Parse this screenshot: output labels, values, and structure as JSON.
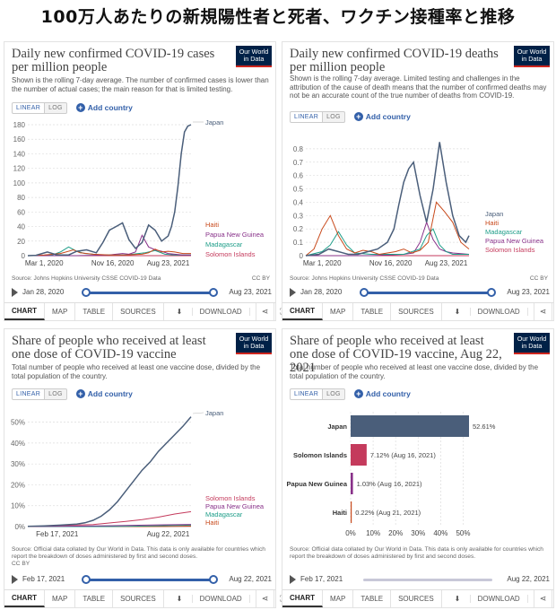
{
  "header": {
    "title": "100万人あたりの新規陽性者と死者、ワクチン接種率と推移"
  },
  "common": {
    "logo": "Our World in Data",
    "linear": "LINEAR",
    "log": "LOG",
    "add_country": "Add country",
    "ccby": "CC BY",
    "tabs": {
      "chart": "CHART",
      "map": "MAP",
      "table": "TABLE",
      "sources": "SOURCES",
      "download": "DOWNLOAD"
    }
  },
  "colors": {
    "Japan": "#4a5e7a",
    "Haiti": "#c84a1c",
    "Papua New Guinea": "#883189",
    "Madagascar": "#1f9e89",
    "Solomon Islands": "#c43a5c",
    "accent": "#3360a9"
  },
  "panels": [
    {
      "title": "Daily new confirmed COVID-19 cases per million people",
      "subtitle": "Shown is the rolling 7-day average. The number of confirmed cases is lower than the number of actual cases; the main reason for that is limited testing.",
      "source": "Source: Johns Hopkins University CSSE COVID-19 Data",
      "date_start": "Jan 28, 2020",
      "date_end": "Aug 23, 2021"
    },
    {
      "title": "Daily new confirmed COVID-19 deaths per million people",
      "subtitle": "Shown is the rolling 7-day average. Limited testing and challenges in the attribution of the cause of death means that the number of confirmed deaths may not be an accurate count of the true number of deaths from COVID-19.",
      "source": "Source: Johns Hopkins University CSSE COVID-19 Data",
      "date_start": "Jan 28, 2020",
      "date_end": "Aug 23, 2021"
    },
    {
      "title": "Share of people who received at least one dose of COVID-19 vaccine",
      "subtitle": "Total number of people who received at least one vaccine dose, divided by the total population of the country.",
      "source": "Source: Official data collated by Our World in Data. This data is only available for countries which report the breakdown of doses administered by first and second doses.",
      "source_tail": "CC BY",
      "date_start": "Feb 17, 2021",
      "date_end": "Aug 22, 2021"
    },
    {
      "title": "Share of people who received at least one dose of COVID-19 vaccine, Aug 22, 2021",
      "subtitle": "Total number of people who received at least one vaccine dose, divided by the total population of the country.",
      "source": "Source: Official data collated by Our World in Data. This data is only available for countries which report the breakdown of doses administered by first and second doses.",
      "date_start": "Feb 17, 2021",
      "date_end": "Aug 22, 2021"
    }
  ],
  "chart_data": [
    {
      "type": "line",
      "title": "Daily new confirmed COVID-19 cases per million people",
      "x_ticks": [
        "Mar 1, 2020",
        "Nov 16, 2020",
        "Aug 23, 2021"
      ],
      "ylim": [
        0,
        180
      ],
      "y_ticks": [
        0,
        20,
        40,
        60,
        80,
        100,
        120,
        140,
        160,
        180
      ],
      "series": [
        {
          "name": "Japan",
          "x": [
            0,
            0.05,
            0.12,
            0.18,
            0.25,
            0.3,
            0.36,
            0.42,
            0.46,
            0.5,
            0.54,
            0.58,
            0.62,
            0.66,
            0.7,
            0.74,
            0.78,
            0.82,
            0.86,
            0.88,
            0.9,
            0.92,
            0.94,
            0.96,
            0.98,
            1.0
          ],
          "y": [
            0,
            0.5,
            5,
            1,
            1,
            6,
            8,
            4,
            18,
            35,
            40,
            45,
            22,
            10,
            18,
            42,
            35,
            20,
            27,
            40,
            60,
            95,
            140,
            170,
            178,
            180
          ]
        },
        {
          "name": "Haiti",
          "x": [
            0,
            0.1,
            0.2,
            0.28,
            0.32,
            0.4,
            0.5,
            0.6,
            0.7,
            0.74,
            0.78,
            0.82,
            0.86,
            0.9,
            0.95,
            1.0
          ],
          "y": [
            0,
            1,
            3,
            8,
            4,
            2,
            1,
            1,
            2,
            4,
            9,
            5,
            6,
            5,
            3,
            3
          ]
        },
        {
          "name": "Papua New Guinea",
          "x": [
            0,
            0.3,
            0.5,
            0.58,
            0.62,
            0.66,
            0.7,
            0.74,
            0.78,
            0.82,
            0.86,
            0.9,
            0.95,
            1.0
          ],
          "y": [
            0,
            0,
            1,
            3,
            2,
            5,
            28,
            12,
            8,
            6,
            3,
            2,
            1,
            1
          ]
        },
        {
          "name": "Madagascar",
          "x": [
            0,
            0.15,
            0.2,
            0.25,
            0.3,
            0.35,
            0.45,
            0.6,
            0.72,
            0.78,
            0.84,
            0.9,
            1.0
          ],
          "y": [
            0,
            1,
            5,
            12,
            6,
            3,
            1,
            1,
            4,
            7,
            2,
            1,
            1
          ]
        },
        {
          "name": "Solomon Islands",
          "x": [
            0,
            1.0
          ],
          "y": [
            0,
            0
          ]
        }
      ]
    },
    {
      "type": "line",
      "title": "Daily new confirmed COVID-19 deaths per million people",
      "x_ticks": [
        "Mar 1, 2020",
        "Nov 16, 2020",
        "Aug 23, 2021"
      ],
      "ylim": [
        0,
        0.9
      ],
      "y_ticks": [
        0,
        0.1,
        0.2,
        0.3,
        0.4,
        0.5,
        0.6,
        0.7,
        0.8
      ],
      "series": [
        {
          "name": "Japan",
          "x": [
            0,
            0.08,
            0.14,
            0.2,
            0.26,
            0.32,
            0.38,
            0.44,
            0.5,
            0.54,
            0.57,
            0.6,
            0.63,
            0.66,
            0.7,
            0.74,
            0.78,
            0.82,
            0.86,
            0.9,
            0.94,
            0.98,
            1.0
          ],
          "y": [
            0,
            0.01,
            0.05,
            0.03,
            0.01,
            0.01,
            0.03,
            0.05,
            0.1,
            0.2,
            0.38,
            0.55,
            0.65,
            0.7,
            0.45,
            0.25,
            0.5,
            0.85,
            0.55,
            0.3,
            0.15,
            0.1,
            0.15
          ]
        },
        {
          "name": "Haiti",
          "x": [
            0,
            0.05,
            0.1,
            0.15,
            0.2,
            0.25,
            0.3,
            0.35,
            0.4,
            0.45,
            0.5,
            0.55,
            0.6,
            0.65,
            0.7,
            0.75,
            0.8,
            0.85,
            0.9,
            0.95,
            1.0
          ],
          "y": [
            0,
            0.05,
            0.2,
            0.3,
            0.15,
            0.05,
            0.02,
            0.04,
            0.03,
            0.01,
            0.02,
            0.03,
            0.05,
            0.02,
            0.04,
            0.1,
            0.4,
            0.33,
            0.25,
            0.1,
            0.05
          ]
        },
        {
          "name": "Madagascar",
          "x": [
            0,
            0.1,
            0.15,
            0.2,
            0.25,
            0.3,
            0.4,
            0.6,
            0.7,
            0.74,
            0.78,
            0.82,
            0.86,
            0.9,
            1.0
          ],
          "y": [
            0,
            0.03,
            0.08,
            0.18,
            0.08,
            0.02,
            0.01,
            0.01,
            0.05,
            0.15,
            0.2,
            0.08,
            0.03,
            0.01,
            0.01
          ]
        },
        {
          "name": "Papua New Guinea",
          "x": [
            0,
            0.4,
            0.6,
            0.66,
            0.7,
            0.74,
            0.78,
            0.82,
            0.86,
            0.9,
            1.0
          ],
          "y": [
            0,
            0,
            0.01,
            0.02,
            0.1,
            0.25,
            0.12,
            0.05,
            0.03,
            0.02,
            0.01
          ]
        },
        {
          "name": "Solomon Islands",
          "x": [
            0,
            1.0
          ],
          "y": [
            0,
            0
          ]
        }
      ]
    },
    {
      "type": "line",
      "title": "Share of people who received at least one dose of COVID-19 vaccine",
      "x_ticks": [
        "Feb 17, 2021",
        "Aug 22, 2021"
      ],
      "ylim": [
        0,
        55
      ],
      "y_ticks": [
        0,
        10,
        20,
        30,
        40,
        50
      ],
      "y_unit": "%",
      "series": [
        {
          "name": "Japan",
          "x": [
            0,
            0.1,
            0.2,
            0.3,
            0.35,
            0.4,
            0.45,
            0.5,
            0.55,
            0.6,
            0.65,
            0.7,
            0.75,
            0.8,
            0.85,
            0.9,
            0.95,
            1.0
          ],
          "y": [
            0.1,
            0.3,
            0.7,
            1.2,
            1.8,
            3,
            5,
            8,
            12,
            17,
            22,
            27,
            31,
            36,
            40,
            44,
            48,
            52.61
          ]
        },
        {
          "name": "Solomon Islands",
          "x": [
            0,
            0.2,
            0.4,
            0.5,
            0.6,
            0.7,
            0.8,
            0.9,
            1.0
          ],
          "y": [
            0,
            0.5,
            1,
            1.7,
            2.5,
            3.3,
            4.5,
            6,
            7.12
          ]
        },
        {
          "name": "Papua New Guinea",
          "x": [
            0,
            0.3,
            0.6,
            0.8,
            1.0
          ],
          "y": [
            0,
            0.2,
            0.5,
            0.8,
            1.03
          ]
        },
        {
          "name": "Madagascar",
          "x": [
            0,
            0.4,
            0.6,
            0.8,
            1.0
          ],
          "y": [
            0,
            0,
            0.1,
            0.4,
            0.7
          ]
        },
        {
          "name": "Haiti",
          "x": [
            0,
            0.7,
            0.85,
            1.0
          ],
          "y": [
            0,
            0,
            0.05,
            0.22
          ]
        }
      ]
    },
    {
      "type": "bar",
      "title": "Share of people who received at least one dose of COVID-19 vaccine, Aug 22, 2021",
      "categories": [
        "Japan",
        "Solomon Islands",
        "Papua New Guinea",
        "Haiti"
      ],
      "values": [
        52.61,
        7.12,
        1.03,
        0.22
      ],
      "labels": [
        "52.61%",
        "7.12% (Aug 16, 2021)",
        "1.03% (Aug 16, 2021)",
        "0.22% (Aug 21, 2021)"
      ],
      "x_ticks": [
        "0%",
        "10%",
        "20%",
        "30%",
        "40%",
        "50%"
      ],
      "xlim": [
        0,
        55
      ]
    }
  ]
}
